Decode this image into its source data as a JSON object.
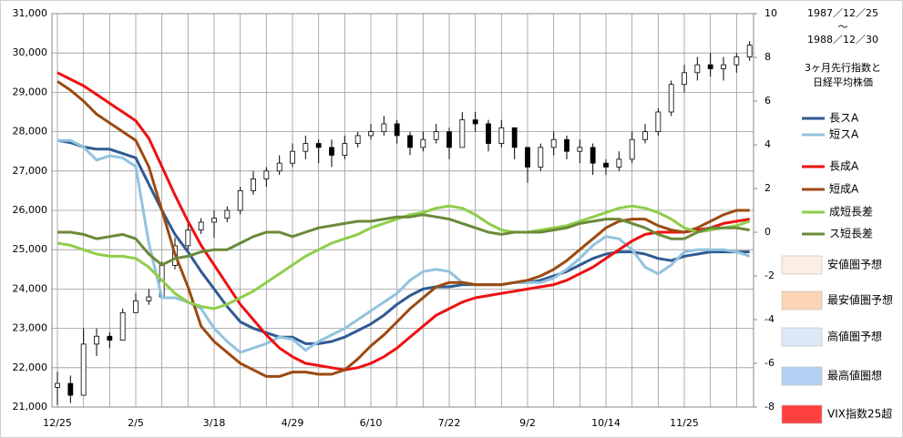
{
  "chart_data": {
    "type": "candlestick_lines",
    "period_from": "1987／12／25",
    "period_sep": "～",
    "period_to": "1988／12／30",
    "title_lines": [
      "3ヶ月先行指数と",
      "日経平均株価"
    ],
    "categories": [
      "12/25",
      null,
      null,
      null,
      null,
      null,
      "2/5",
      null,
      null,
      null,
      null,
      null,
      "3/18",
      null,
      null,
      null,
      null,
      null,
      "4/29",
      null,
      null,
      null,
      null,
      null,
      "6/10",
      null,
      null,
      null,
      null,
      null,
      "7/22",
      null,
      null,
      null,
      null,
      null,
      "9/2",
      null,
      null,
      null,
      null,
      null,
      "10/14",
      null,
      null,
      null,
      null,
      null,
      "11/25",
      null,
      null,
      null,
      null,
      null
    ],
    "ylim": [
      21000,
      31000
    ],
    "yticks": [
      {
        "value": 21000,
        "label": "21,000"
      },
      {
        "value": 22000,
        "label": "22,000"
      },
      {
        "value": 23000,
        "label": "23,000"
      },
      {
        "value": 24000,
        "label": "24,000"
      },
      {
        "value": 25000,
        "label": "25,000"
      },
      {
        "value": 26000,
        "label": "26,000"
      },
      {
        "value": 27000,
        "label": "27,000"
      },
      {
        "value": 28000,
        "label": "28,000"
      },
      {
        "value": 29000,
        "label": "29,000"
      },
      {
        "value": 30000,
        "label": "30,000"
      },
      {
        "value": 31000,
        "label": "31,000"
      }
    ],
    "y2lim": [
      -8,
      10
    ],
    "y2ticks": [
      -8,
      -6,
      -4,
      -2,
      0,
      2,
      4,
      6,
      8,
      10
    ],
    "grid": true,
    "candles": {
      "color_up": "#ffffff",
      "color_down": "#000000",
      "open": [
        21500,
        21600,
        21300,
        22600,
        22800,
        22700,
        23400,
        23700,
        23800,
        24600,
        25100,
        25500,
        25700,
        25800,
        26000,
        26500,
        26800,
        27000,
        27200,
        27500,
        27700,
        27600,
        27400,
        27700,
        27900,
        28000,
        28200,
        27900,
        27600,
        27800,
        28000,
        27600,
        28300,
        28200,
        27700,
        28100,
        27600,
        27100,
        27600,
        27800,
        27500,
        27600,
        27200,
        27100,
        27300,
        27800,
        28000,
        28500,
        29200,
        29500,
        29700,
        29600,
        29700,
        29900
      ],
      "high": [
        21900,
        21800,
        23000,
        23000,
        22900,
        23500,
        23900,
        24000,
        24700,
        25300,
        25700,
        25800,
        26000,
        26100,
        26600,
        27000,
        27100,
        27400,
        27700,
        27900,
        27800,
        27800,
        27900,
        28000,
        28200,
        28400,
        28300,
        28000,
        28000,
        28200,
        28100,
        28500,
        28500,
        28300,
        28300,
        28100,
        27600,
        27700,
        28000,
        27900,
        27800,
        27700,
        27300,
        27500,
        28000,
        28200,
        28600,
        29300,
        29700,
        29900,
        30000,
        29900,
        30000,
        30300
      ],
      "low": [
        21050,
        21100,
        21300,
        22300,
        22500,
        22700,
        23400,
        23600,
        23800,
        24500,
        25000,
        25400,
        25300,
        25700,
        25900,
        26400,
        26600,
        26900,
        27100,
        27300,
        27200,
        27100,
        27300,
        27600,
        27800,
        27900,
        27700,
        27400,
        27500,
        27700,
        27300,
        27600,
        28000,
        27500,
        27600,
        27300,
        26700,
        27000,
        27400,
        27300,
        27200,
        26900,
        26900,
        27000,
        27200,
        27700,
        27900,
        28400,
        29000,
        29300,
        29400,
        29300,
        29500,
        29800
      ],
      "close": [
        21600,
        21300,
        22600,
        22800,
        22700,
        23400,
        23700,
        23800,
        24600,
        25100,
        25500,
        25700,
        25800,
        26000,
        26500,
        26800,
        27000,
        27200,
        27500,
        27700,
        27600,
        27400,
        27700,
        27900,
        28000,
        28200,
        27900,
        27600,
        27800,
        28000,
        27600,
        28300,
        28200,
        27700,
        28100,
        27600,
        27100,
        27600,
        27800,
        27500,
        27600,
        27200,
        27100,
        27300,
        27800,
        28000,
        28500,
        29200,
        29500,
        29700,
        29600,
        29700,
        29900,
        30200
      ]
    },
    "series": [
      {
        "name": "長スA",
        "color": "#2f5b92",
        "axis": "y2",
        "values": [
          4.2,
          4.1,
          3.9,
          3.8,
          3.8,
          3.6,
          3.4,
          2.2,
          1.0,
          -0.1,
          -0.9,
          -1.8,
          -2.6,
          -3.4,
          -4.1,
          -4.4,
          -4.6,
          -4.8,
          -4.8,
          -5.1,
          -5.1,
          -5.0,
          -4.8,
          -4.5,
          -4.2,
          -3.8,
          -3.3,
          -2.9,
          -2.6,
          -2.5,
          -2.5,
          -2.4,
          -2.4,
          -2.4,
          -2.4,
          -2.3,
          -2.3,
          -2.2,
          -2.0,
          -1.8,
          -1.5,
          -1.2,
          -1.0,
          -0.9,
          -0.9,
          -1.0,
          -1.2,
          -1.3,
          -1.1,
          -1.0,
          -0.9,
          -0.9,
          -0.9,
          -0.9
        ]
      },
      {
        "name": "短スA",
        "color": "#92c3de",
        "axis": "y2",
        "values": [
          4.2,
          4.2,
          3.9,
          3.3,
          3.5,
          3.4,
          3.0,
          -0.5,
          -3.0,
          -3.0,
          -3.2,
          -3.5,
          -4.4,
          -5.0,
          -5.5,
          -5.3,
          -5.1,
          -4.8,
          -4.9,
          -5.4,
          -5.0,
          -4.7,
          -4.4,
          -4.0,
          -3.6,
          -3.2,
          -2.8,
          -2.2,
          -1.8,
          -1.7,
          -1.8,
          -2.3,
          -2.4,
          -2.4,
          -2.4,
          -2.3,
          -2.3,
          -2.3,
          -2.1,
          -1.7,
          -1.2,
          -0.6,
          -0.2,
          -0.3,
          -0.8,
          -1.6,
          -1.9,
          -1.5,
          -0.9,
          -0.8,
          -0.8,
          -0.8,
          -0.9,
          -1.1
        ]
      },
      {
        "name": "長成A",
        "color": "#ee1111",
        "axis": "y2",
        "values": [
          7.3,
          7.0,
          6.7,
          6.3,
          5.9,
          5.5,
          5.1,
          4.3,
          3.0,
          1.7,
          0.5,
          -0.6,
          -1.5,
          -2.4,
          -3.3,
          -4.0,
          -4.7,
          -5.3,
          -5.7,
          -6.0,
          -6.1,
          -6.2,
          -6.3,
          -6.2,
          -6.0,
          -5.7,
          -5.3,
          -4.8,
          -4.3,
          -3.8,
          -3.5,
          -3.2,
          -3.0,
          -2.9,
          -2.8,
          -2.7,
          -2.6,
          -2.5,
          -2.4,
          -2.2,
          -1.9,
          -1.6,
          -1.2,
          -0.8,
          -0.4,
          -0.1,
          0.0,
          0.0,
          0.0,
          0.1,
          0.2,
          0.4,
          0.5,
          0.6
        ]
      },
      {
        "name": "短成A",
        "color": "#9c4a12",
        "axis": "y2",
        "values": [
          6.9,
          6.5,
          6.0,
          5.4,
          5.0,
          4.6,
          4.2,
          3.0,
          1.0,
          -1.0,
          -2.5,
          -4.3,
          -5.0,
          -5.5,
          -6.0,
          -6.3,
          -6.6,
          -6.6,
          -6.4,
          -6.4,
          -6.5,
          -6.5,
          -6.3,
          -5.8,
          -5.2,
          -4.7,
          -4.1,
          -3.5,
          -3.0,
          -2.5,
          -2.3,
          -2.3,
          -2.4,
          -2.4,
          -2.4,
          -2.3,
          -2.2,
          -2.0,
          -1.7,
          -1.3,
          -0.8,
          -0.3,
          0.2,
          0.5,
          0.6,
          0.6,
          0.3,
          0.1,
          0.0,
          0.2,
          0.5,
          0.8,
          1.0,
          1.0
        ]
      },
      {
        "name": "成短長差",
        "color": "#8fce4a",
        "axis": "y2",
        "values": [
          -0.5,
          -0.6,
          -0.8,
          -1.0,
          -1.1,
          -1.1,
          -1.2,
          -1.6,
          -2.2,
          -2.8,
          -3.2,
          -3.4,
          -3.5,
          -3.3,
          -3.0,
          -2.7,
          -2.3,
          -1.9,
          -1.5,
          -1.1,
          -0.8,
          -0.5,
          -0.3,
          -0.1,
          0.2,
          0.4,
          0.6,
          0.8,
          0.9,
          1.1,
          1.2,
          1.1,
          0.8,
          0.4,
          0.1,
          0.0,
          0.0,
          0.1,
          0.2,
          0.3,
          0.5,
          0.7,
          0.9,
          1.1,
          1.2,
          1.1,
          0.9,
          0.6,
          0.2,
          0.0,
          0.1,
          0.2,
          0.3,
          0.5
        ]
      },
      {
        "name": "ス短長差",
        "color": "#6b8a3a",
        "axis": "y2",
        "values": [
          0.0,
          0.0,
          -0.1,
          -0.3,
          -0.2,
          -0.1,
          -0.3,
          -1.0,
          -1.5,
          -1.2,
          -1.1,
          -0.9,
          -0.8,
          -0.8,
          -0.5,
          -0.2,
          0.0,
          0.0,
          -0.2,
          0.0,
          0.2,
          0.3,
          0.4,
          0.5,
          0.5,
          0.6,
          0.7,
          0.7,
          0.8,
          0.7,
          0.6,
          0.4,
          0.2,
          0.0,
          -0.1,
          0.0,
          0.0,
          0.0,
          0.1,
          0.2,
          0.4,
          0.5,
          0.6,
          0.6,
          0.4,
          0.2,
          -0.1,
          -0.3,
          -0.3,
          0.0,
          0.2,
          0.2,
          0.2,
          0.1
        ]
      }
    ],
    "zones": [
      {
        "name": "安値圏予想",
        "color": "#fdeee4"
      },
      {
        "name": "最安値圏予想",
        "color": "#fbd5b5"
      },
      {
        "name": "高値圏予想",
        "color": "#dde9f7"
      },
      {
        "name": "最高値圏想",
        "color": "#b4d1f3"
      },
      {
        "name": "VIX指数25超",
        "color": "#ff4040"
      }
    ]
  }
}
